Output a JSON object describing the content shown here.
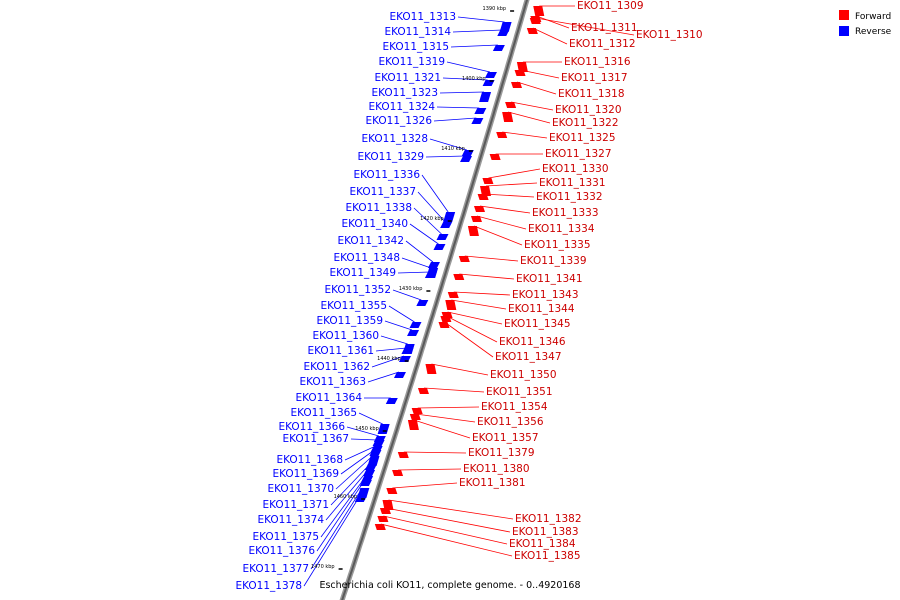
{
  "legend": [
    {
      "label": "Forward",
      "color": "#ff0000"
    },
    {
      "label": "Reverse",
      "color": "#0000ff"
    }
  ],
  "caption": "Escherichia coli KO11, complete genome. - 0..4920168",
  "ticks": [
    "1390 kbp",
    "1400 kbp",
    "1410 kbp",
    "1420 kbp",
    "1430 kbp",
    "1440 kbp",
    "1450 kbp",
    "1460 kbp",
    "1470 kbp"
  ],
  "genes_forward": [
    "EKO11_1309",
    "EKO11_1311",
    "EKO11_1310",
    "EKO11_1312",
    "EKO11_1316",
    "EKO11_1317",
    "EKO11_1318",
    "EKO11_1320",
    "EKO11_1322",
    "EKO11_1325",
    "EKO11_1327",
    "EKO11_1330",
    "EKO11_1331",
    "EKO11_1332",
    "EKO11_1333",
    "EKO11_1334",
    "EKO11_1335",
    "EKO11_1339",
    "EKO11_1341",
    "EKO11_1343",
    "EKO11_1344",
    "EKO11_1345",
    "EKO11_1346",
    "EKO11_1347",
    "EKO11_1350",
    "EKO11_1351",
    "EKO11_1354",
    "EKO11_1356",
    "EKO11_1357",
    "EKO11_1379",
    "EKO11_1380",
    "EKO11_1381",
    "EKO11_1382",
    "EKO11_1383",
    "EKO11_1384",
    "EKO11_1385"
  ],
  "genes_reverse": [
    "EKO11_1313",
    "EKO11_1314",
    "EKO11_1315",
    "EKO11_1319",
    "EKO11_1321",
    "EKO11_1323",
    "EKO11_1324",
    "EKO11_1326",
    "EKO11_1328",
    "EKO11_1329",
    "EKO11_1336",
    "EKO11_1337",
    "EKO11_1338",
    "EKO11_1340",
    "EKO11_1342",
    "EKO11_1348",
    "EKO11_1349",
    "EKO11_1352",
    "EKO11_1355",
    "EKO11_1359",
    "EKO11_1360",
    "EKO11_1361",
    "EKO11_1362",
    "EKO11_1363",
    "EKO11_1364",
    "EKO11_1365",
    "EKO11_1366",
    "EKO11_1367",
    "EKO11_1368",
    "EKO11_1369",
    "EKO11_1370",
    "EKO11_1371",
    "EKO11_1374",
    "EKO11_1375",
    "EKO11_1376",
    "EKO11_1377",
    "EKO11_1378"
  ]
}
